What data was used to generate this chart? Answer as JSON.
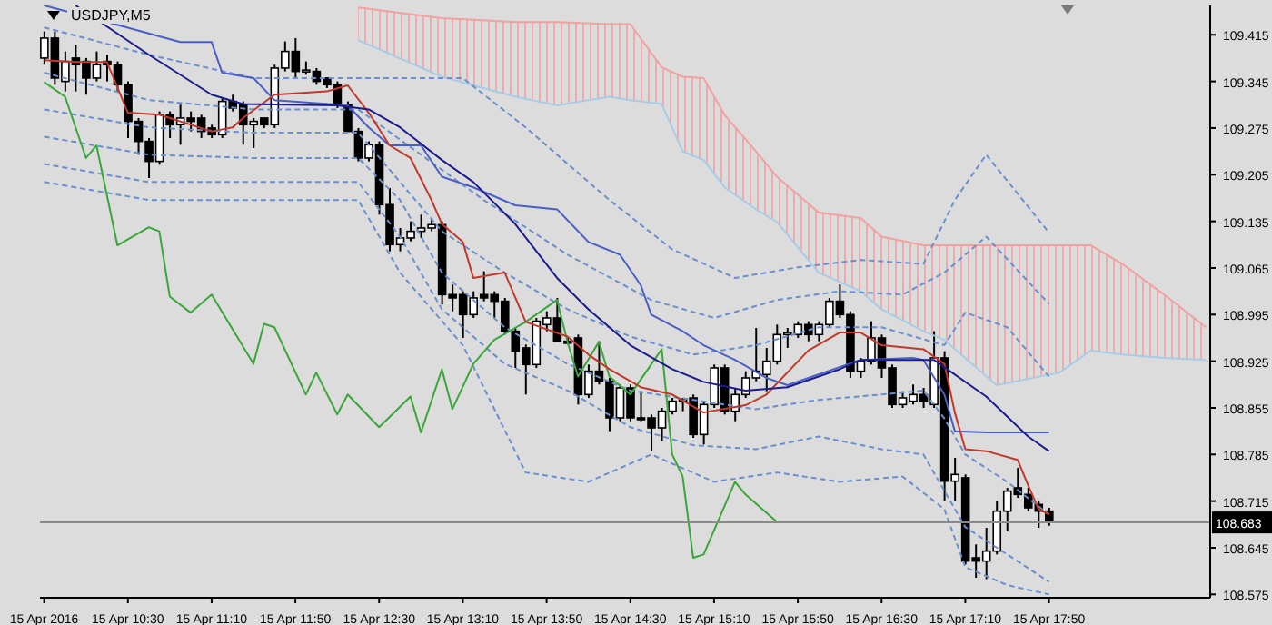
{
  "chart_data": {
    "type": "candlestick",
    "title": "USDJPY,M5",
    "x": [
      "2016-04-15T09:50",
      "2016-04-15T09:55",
      "2016-04-15T10:00",
      "2016-04-15T10:05",
      "2016-04-15T10:10",
      "2016-04-15T10:15",
      "2016-04-15T10:20",
      "2016-04-15T10:25",
      "2016-04-15T10:30",
      "2016-04-15T10:35",
      "2016-04-15T10:40",
      "2016-04-15T10:45",
      "2016-04-15T10:50",
      "2016-04-15T10:55",
      "2016-04-15T11:00",
      "2016-04-15T11:05",
      "2016-04-15T11:10",
      "2016-04-15T11:15",
      "2016-04-15T11:20",
      "2016-04-15T11:25",
      "2016-04-15T11:30",
      "2016-04-15T11:35",
      "2016-04-15T11:40",
      "2016-04-15T11:45",
      "2016-04-15T11:50",
      "2016-04-15T11:55",
      "2016-04-15T12:00",
      "2016-04-15T12:05",
      "2016-04-15T12:10",
      "2016-04-15T12:15",
      "2016-04-15T12:20",
      "2016-04-15T12:25",
      "2016-04-15T12:30",
      "2016-04-15T12:35",
      "2016-04-15T12:40",
      "2016-04-15T12:45",
      "2016-04-15T12:50",
      "2016-04-15T12:55",
      "2016-04-15T13:00",
      "2016-04-15T13:05",
      "2016-04-15T13:10",
      "2016-04-15T13:15",
      "2016-04-15T13:20",
      "2016-04-15T13:25",
      "2016-04-15T13:30",
      "2016-04-15T13:35",
      "2016-04-15T13:40",
      "2016-04-15T13:45",
      "2016-04-15T13:50",
      "2016-04-15T13:55",
      "2016-04-15T14:00",
      "2016-04-15T14:05",
      "2016-04-15T14:10",
      "2016-04-15T14:15",
      "2016-04-15T14:20",
      "2016-04-15T14:25",
      "2016-04-15T14:30",
      "2016-04-15T14:35",
      "2016-04-15T14:40",
      "2016-04-15T14:45",
      "2016-04-15T14:50",
      "2016-04-15T14:55",
      "2016-04-15T15:00",
      "2016-04-15T15:05",
      "2016-04-15T15:10",
      "2016-04-15T15:15",
      "2016-04-15T15:20",
      "2016-04-15T15:25",
      "2016-04-15T15:30",
      "2016-04-15T15:35",
      "2016-04-15T15:40",
      "2016-04-15T15:45",
      "2016-04-15T15:50",
      "2016-04-15T15:55",
      "2016-04-15T16:00",
      "2016-04-15T16:05",
      "2016-04-15T16:10",
      "2016-04-15T16:15",
      "2016-04-15T16:20",
      "2016-04-15T16:25",
      "2016-04-15T16:30",
      "2016-04-15T16:35",
      "2016-04-15T16:40",
      "2016-04-15T16:45",
      "2016-04-15T16:50",
      "2016-04-15T16:55",
      "2016-04-15T17:00",
      "2016-04-15T17:05",
      "2016-04-15T17:10",
      "2016-04-15T17:15",
      "2016-04-15T17:20",
      "2016-04-15T17:25",
      "2016-04-15T17:30",
      "2016-04-15T17:35",
      "2016-04-15T17:40",
      "2016-04-15T17:45",
      "2016-04-15T17:50"
    ],
    "ohlc": [
      [
        109.38,
        109.42,
        109.37,
        109.41
      ],
      [
        109.41,
        109.42,
        109.34,
        109.35
      ],
      [
        109.345,
        109.39,
        109.33,
        109.375
      ],
      [
        109.38,
        109.4,
        109.33,
        109.37
      ],
      [
        109.375,
        109.38,
        109.325,
        109.35
      ],
      [
        109.35,
        109.39,
        109.345,
        109.37
      ],
      [
        109.375,
        109.385,
        109.345,
        109.37
      ],
      [
        109.37,
        109.375,
        109.33,
        109.34
      ],
      [
        109.34,
        109.345,
        109.26,
        109.285
      ],
      [
        109.285,
        109.29,
        109.235,
        109.255
      ],
      [
        109.255,
        109.26,
        109.2,
        109.225
      ],
      [
        109.225,
        109.3,
        109.22,
        109.295
      ],
      [
        109.295,
        109.3,
        109.26,
        109.28
      ],
      [
        109.28,
        109.31,
        109.25,
        109.29
      ],
      [
        109.29,
        109.3,
        109.27,
        109.285
      ],
      [
        109.29,
        109.295,
        109.26,
        109.27
      ],
      [
        109.275,
        109.28,
        109.26,
        109.265
      ],
      [
        109.265,
        109.32,
        109.26,
        109.315
      ],
      [
        109.315,
        109.325,
        109.3,
        109.305
      ],
      [
        109.31,
        109.315,
        109.25,
        109.28
      ],
      [
        109.28,
        109.29,
        109.245,
        109.285
      ],
      [
        109.29,
        109.29,
        109.275,
        109.28
      ],
      [
        109.28,
        109.37,
        109.275,
        109.365
      ],
      [
        109.365,
        109.405,
        109.36,
        109.39
      ],
      [
        109.39,
        109.41,
        109.35,
        109.36
      ],
      [
        109.36,
        109.375,
        109.355,
        109.362
      ],
      [
        109.36,
        109.365,
        109.34,
        109.345
      ],
      [
        109.35,
        109.35,
        109.335,
        109.34
      ],
      [
        109.34,
        109.345,
        109.305,
        109.31
      ],
      [
        109.31,
        109.315,
        109.27,
        109.27
      ],
      [
        109.27,
        109.275,
        109.225,
        109.23
      ],
      [
        109.23,
        109.255,
        109.225,
        109.25
      ],
      [
        109.25,
        109.255,
        109.145,
        109.16
      ],
      [
        109.16,
        109.185,
        109.09,
        109.1
      ],
      [
        109.1,
        109.125,
        109.09,
        109.11
      ],
      [
        109.11,
        109.135,
        109.105,
        109.12
      ],
      [
        109.12,
        109.145,
        109.11,
        109.125
      ],
      [
        109.125,
        109.14,
        109.12,
        109.13
      ],
      [
        109.13,
        109.135,
        109.01,
        109.025
      ],
      [
        109.025,
        109.04,
        109.0,
        109.02
      ],
      [
        109.025,
        109.03,
        108.96,
        108.995
      ],
      [
        108.995,
        109.03,
        108.99,
        109.02
      ],
      [
        109.025,
        109.06,
        109.015,
        109.02
      ],
      [
        109.025,
        109.03,
        108.99,
        109.015
      ],
      [
        109.015,
        109.02,
        108.965,
        108.97
      ],
      [
        108.97,
        108.975,
        108.915,
        108.94
      ],
      [
        108.945,
        108.95,
        108.875,
        108.92
      ],
      [
        108.92,
        108.99,
        108.915,
        108.985
      ],
      [
        108.98,
        109.0,
        108.97,
        108.99
      ],
      [
        108.99,
        109.02,
        108.955,
        108.955
      ],
      [
        108.955,
        108.96,
        108.95,
        108.952
      ],
      [
        108.96,
        108.965,
        108.86,
        108.875
      ],
      [
        108.875,
        108.92,
        108.87,
        108.91
      ],
      [
        108.91,
        108.955,
        108.89,
        108.895
      ],
      [
        108.895,
        108.9,
        108.82,
        108.84
      ],
      [
        108.84,
        108.89,
        108.835,
        108.885
      ],
      [
        108.885,
        108.89,
        108.835,
        108.84
      ],
      [
        108.84,
        108.88,
        108.835,
        108.838
      ],
      [
        108.84,
        108.845,
        108.79,
        108.825
      ],
      [
        108.825,
        108.855,
        108.805,
        108.85
      ],
      [
        108.85,
        108.87,
        108.845,
        108.865
      ],
      [
        108.865,
        108.87,
        108.85,
        108.868
      ],
      [
        108.87,
        108.875,
        108.81,
        108.815
      ],
      [
        108.815,
        108.865,
        108.8,
        108.86
      ],
      [
        108.86,
        108.92,
        108.855,
        108.915
      ],
      [
        108.915,
        108.92,
        108.845,
        108.85
      ],
      [
        108.85,
        108.885,
        108.835,
        108.875
      ],
      [
        108.875,
        108.91,
        108.87,
        108.9
      ],
      [
        108.9,
        108.975,
        108.895,
        108.91
      ],
      [
        108.905,
        108.945,
        108.88,
        108.925
      ],
      [
        108.925,
        108.98,
        108.92,
        108.965
      ],
      [
        108.965,
        108.975,
        108.945,
        108.968
      ],
      [
        108.965,
        108.985,
        108.96,
        108.98
      ],
      [
        108.98,
        108.985,
        108.955,
        108.965
      ],
      [
        108.965,
        108.985,
        108.955,
        108.98
      ],
      [
        108.98,
        109.02,
        108.975,
        109.015
      ],
      [
        109.015,
        109.04,
        108.99,
        108.995
      ],
      [
        108.995,
        109.0,
        108.9,
        108.91
      ],
      [
        108.91,
        108.93,
        108.9,
        108.925
      ],
      [
        108.925,
        108.985,
        108.92,
        108.96
      ],
      [
        108.96,
        108.965,
        108.9,
        108.915
      ],
      [
        108.915,
        108.92,
        108.855,
        108.86
      ],
      [
        108.86,
        108.88,
        108.855,
        108.87
      ],
      [
        108.865,
        108.89,
        108.86,
        108.875
      ],
      [
        108.875,
        108.885,
        108.855,
        108.865
      ],
      [
        108.86,
        108.97,
        108.855,
        108.93
      ],
      [
        108.93,
        108.94,
        108.715,
        108.745
      ],
      [
        108.745,
        108.78,
        108.715,
        108.755
      ],
      [
        108.75,
        108.755,
        108.62,
        108.625
      ],
      [
        108.63,
        108.65,
        108.6,
        108.625
      ],
      [
        108.625,
        108.675,
        108.598,
        108.64
      ],
      [
        108.64,
        108.715,
        108.635,
        108.7
      ],
      [
        108.7,
        108.735,
        108.67,
        108.73
      ],
      [
        108.735,
        108.765,
        108.72,
        108.725
      ],
      [
        108.725,
        108.735,
        108.7,
        108.705
      ],
      [
        108.71,
        108.715,
        108.675,
        108.7
      ],
      [
        108.7,
        108.705,
        108.678,
        108.683
      ]
    ],
    "series": [
      {
        "type": "line",
        "color": "#f2a0a0",
        "x": [
          "2016-04-15T12:20",
          "2016-04-15T13:00",
          "2016-04-15T13:35",
          "2016-04-15T13:55",
          "2016-04-15T14:20",
          "2016-04-15T14:30",
          "2016-04-15T14:45",
          "2016-04-15T14:55",
          "2016-04-15T15:05",
          "2016-04-15T15:15",
          "2016-04-15T15:30",
          "2016-04-15T15:40",
          "2016-04-15T16:00",
          "2016-04-15T16:20",
          "2016-04-15T16:30",
          "2016-04-15T16:50",
          "2016-04-15T17:00",
          "2016-04-15T17:25",
          "2016-04-15T17:55",
          "2016-04-15T18:10",
          "2016-04-15T18:25",
          "2016-04-15T18:45",
          "2016-04-15T19:05"
        ],
        "values": [
          109.456,
          109.44,
          109.434,
          109.434,
          109.431,
          109.431,
          109.366,
          109.352,
          109.35,
          109.295,
          109.24,
          109.202,
          109.148,
          109.14,
          109.112,
          109.099,
          109.099,
          109.099,
          109.099,
          109.099,
          109.071,
          109.025,
          108.976
        ],
        "lower": [
          109.407,
          109.352,
          109.322,
          109.309,
          109.322,
          109.317,
          109.311,
          109.24,
          109.227,
          109.186,
          109.153,
          109.134,
          109.058,
          109.03,
          109.003,
          108.97,
          108.957,
          108.889,
          108.908,
          108.941,
          108.935,
          108.93,
          108.927
        ],
        "upper": [
          109.456,
          109.44,
          109.434,
          109.434,
          109.431,
          109.431,
          109.366,
          109.352,
          109.35,
          109.295,
          109.24,
          109.202,
          109.148,
          109.14,
          109.112,
          109.099,
          109.099,
          109.099,
          109.099,
          109.099,
          109.071,
          109.025,
          108.976
        ]
      },
      {
        "type": "line",
        "color": "#a8cce8",
        "x": [
          "2016-04-15T12:20",
          "2016-04-15T13:00",
          "2016-04-15T13:35",
          "2016-04-15T13:55",
          "2016-04-15T14:20",
          "2016-04-15T14:30",
          "2016-04-15T14:45",
          "2016-04-15T14:55",
          "2016-04-15T15:05",
          "2016-04-15T15:15",
          "2016-04-15T15:30",
          "2016-04-15T15:40",
          "2016-04-15T16:00",
          "2016-04-15T16:20",
          "2016-04-15T16:30",
          "2016-04-15T16:50",
          "2016-04-15T17:00",
          "2016-04-15T17:25",
          "2016-04-15T17:55",
          "2016-04-15T18:10",
          "2016-04-15T18:25",
          "2016-04-15T18:45",
          "2016-04-15T19:05"
        ],
        "values": [
          109.407,
          109.352,
          109.322,
          109.309,
          109.322,
          109.317,
          109.311,
          109.24,
          109.227,
          109.186,
          109.153,
          109.134,
          109.058,
          109.03,
          109.003,
          108.97,
          108.957,
          108.889,
          108.908,
          108.941,
          108.935,
          108.93,
          108.927
        ]
      },
      {
        "type": "line",
        "color": "#6a8fcc",
        "line_style": "dashed",
        "x": [
          "2016-04-15T09:50",
          "2016-04-15T10:40",
          "2016-04-15T11:30",
          "2016-04-15T12:20",
          "2016-04-15T12:40",
          "2016-04-15T13:00",
          "2016-04-15T13:30",
          "2016-04-15T14:00",
          "2016-04-15T14:30",
          "2016-04-15T15:00",
          "2016-04-15T15:30",
          "2016-04-15T16:00",
          "2016-04-15T16:30",
          "2016-04-15T17:00",
          "2016-04-15T17:10",
          "2016-04-15T17:30",
          "2016-04-15T17:50"
        ],
        "values": [
          109.303,
          109.276,
          109.268,
          109.268,
          109.194,
          109.12,
          109.058,
          109.003,
          108.962,
          108.935,
          108.949,
          108.976,
          108.976,
          108.949,
          108.998,
          108.976,
          108.902
        ]
      },
      {
        "type": "line",
        "color": "#6a8fcc",
        "line_style": "dashed",
        "x": [
          "2016-04-15T09:50",
          "2016-04-15T10:40",
          "2016-04-15T11:30",
          "2016-04-15T12:20",
          "2016-04-15T12:50",
          "2016-04-15T13:20",
          "2016-04-15T14:00",
          "2016-04-15T14:40",
          "2016-04-15T15:10",
          "2016-04-15T15:40",
          "2016-04-15T16:10",
          "2016-04-15T16:40",
          "2016-04-15T17:00",
          "2016-04-15T17:20",
          "2016-04-15T17:50"
        ],
        "values": [
          109.358,
          109.317,
          109.303,
          109.303,
          109.235,
          109.167,
          109.085,
          109.017,
          108.99,
          109.017,
          109.03,
          109.025,
          109.058,
          109.112,
          109.011
        ]
      },
      {
        "type": "line",
        "color": "#6a8fcc",
        "line_style": "dashed",
        "x": [
          "2016-04-15T09:50",
          "2016-04-15T10:40",
          "2016-04-15T11:30",
          "2016-04-15T12:20",
          "2016-04-15T13:10",
          "2016-04-15T13:40",
          "2016-04-15T14:20",
          "2016-04-15T14:50",
          "2016-04-15T15:20",
          "2016-04-15T15:50",
          "2016-04-15T16:20",
          "2016-04-15T16:50",
          "2016-04-15T17:05",
          "2016-04-15T17:20",
          "2016-04-15T17:50"
        ],
        "values": [
          109.426,
          109.385,
          109.35,
          109.35,
          109.35,
          109.276,
          109.167,
          109.093,
          109.05,
          109.066,
          109.077,
          109.071,
          109.167,
          109.235,
          109.118
        ]
      },
      {
        "type": "line",
        "color": "#6a8fcc",
        "line_style": "dashed",
        "x": [
          "2016-04-15T09:50",
          "2016-04-15T10:40",
          "2016-04-15T11:30",
          "2016-04-15T12:20",
          "2016-04-15T12:40",
          "2016-04-15T13:00",
          "2016-04-15T13:30",
          "2016-04-15T14:00",
          "2016-04-15T14:30",
          "2016-04-15T15:00",
          "2016-04-15T15:30",
          "2016-04-15T16:00",
          "2016-04-15T16:30",
          "2016-04-15T16:50",
          "2016-04-15T17:00",
          "2016-04-15T17:10",
          "2016-04-15T17:30",
          "2016-04-15T17:50"
        ],
        "values": [
          109.262,
          109.235,
          109.23,
          109.23,
          109.167,
          109.058,
          108.976,
          108.921,
          108.881,
          108.867,
          108.853,
          108.867,
          108.875,
          108.881,
          108.839,
          108.785,
          108.744,
          108.695
        ]
      },
      {
        "type": "line",
        "color": "#6a8fcc",
        "line_style": "dashed",
        "x": [
          "2016-04-15T09:50",
          "2016-04-15T10:40",
          "2016-04-15T11:30",
          "2016-04-15T12:20",
          "2016-04-15T12:40",
          "2016-04-15T13:00",
          "2016-04-15T13:30",
          "2016-04-15T14:00",
          "2016-04-15T14:30",
          "2016-04-15T15:00",
          "2016-04-15T15:30",
          "2016-04-15T16:00",
          "2016-04-15T16:30",
          "2016-04-15T16:50",
          "2016-04-15T17:10",
          "2016-04-15T17:30",
          "2016-04-15T17:50"
        ],
        "values": [
          109.221,
          109.194,
          109.194,
          109.194,
          109.112,
          109.003,
          108.921,
          108.881,
          108.826,
          108.799,
          108.793,
          108.812,
          108.793,
          108.785,
          108.676,
          108.635,
          108.594
        ]
      },
      {
        "type": "line",
        "color": "#6a8fcc",
        "line_style": "dashed",
        "x": [
          "2016-04-15T09:50",
          "2016-04-15T10:40",
          "2016-04-15T11:30",
          "2016-04-15T12:20",
          "2016-04-15T12:40",
          "2016-04-15T13:10",
          "2016-04-15T13:40",
          "2016-04-15T14:10",
          "2016-04-15T14:40",
          "2016-04-15T15:10",
          "2016-04-15T15:40",
          "2016-04-15T16:10",
          "2016-04-15T16:40",
          "2016-04-15T17:00",
          "2016-04-15T17:10",
          "2016-04-15T17:30",
          "2016-04-15T17:50"
        ],
        "values": [
          109.194,
          109.167,
          109.167,
          109.167,
          109.058,
          108.949,
          108.758,
          108.744,
          108.785,
          108.744,
          108.758,
          108.744,
          108.752,
          108.703,
          108.616,
          108.589,
          108.575
        ]
      },
      {
        "type": "line",
        "color": "#3aa63a",
        "x": [
          "2016-04-15T09:50",
          "2016-04-15T10:00",
          "2016-04-15T10:10",
          "2016-04-15T10:15",
          "2016-04-15T10:25",
          "2016-04-15T10:40",
          "2016-04-15T10:45",
          "2016-04-15T10:50",
          "2016-04-15T11:00",
          "2016-04-15T11:10",
          "2016-04-15T11:30",
          "2016-04-15T11:35",
          "2016-04-15T11:40",
          "2016-04-15T11:55",
          "2016-04-15T12:00",
          "2016-04-15T12:10",
          "2016-04-15T12:15",
          "2016-04-15T12:30",
          "2016-04-15T12:45",
          "2016-04-15T12:50",
          "2016-04-15T13:00",
          "2016-04-15T13:05",
          "2016-04-15T13:15",
          "2016-04-15T13:25",
          "2016-04-15T13:40",
          "2016-04-15T13:55",
          "2016-04-15T14:00",
          "2016-04-15T14:05",
          "2016-04-15T14:15",
          "2016-04-15T14:20",
          "2016-04-15T14:30",
          "2016-04-15T14:45",
          "2016-04-15T14:50",
          "2016-04-15T14:55",
          "2016-04-15T15:00",
          "2016-04-15T15:05",
          "2016-04-15T15:20",
          "2016-04-15T15:25",
          "2016-04-15T15:40"
        ],
        "values": [
          109.344,
          109.322,
          109.23,
          109.249,
          109.099,
          109.126,
          109.12,
          109.022,
          108.998,
          109.025,
          108.921,
          108.981,
          108.976,
          108.875,
          108.908,
          108.845,
          108.875,
          108.826,
          108.872,
          108.818,
          108.913,
          108.853,
          108.921,
          108.957,
          108.984,
          109.017,
          108.954,
          108.902,
          108.954,
          108.902,
          108.875,
          108.943,
          108.785,
          108.752,
          108.63,
          108.635,
          108.744,
          108.725,
          108.684
        ]
      },
      {
        "type": "line",
        "color": "#4a5fc4",
        "x": [
          "2016-04-15T09:50",
          "2016-04-15T10:20",
          "2016-04-15T10:55",
          "2016-04-15T11:10",
          "2016-04-15T11:15",
          "2016-04-15T11:30",
          "2016-04-15T11:40",
          "2016-04-15T12:15",
          "2016-04-15T12:25",
          "2016-04-15T12:35",
          "2016-04-15T12:50",
          "2016-04-15T13:00",
          "2016-04-15T13:15",
          "2016-04-15T13:35",
          "2016-04-15T13:55",
          "2016-04-15T14:10",
          "2016-04-15T14:25",
          "2016-04-15T14:35",
          "2016-04-15T14:40",
          "2016-04-15T14:55",
          "2016-04-15T15:05",
          "2016-04-15T15:20",
          "2016-04-15T15:35",
          "2016-04-15T15:45",
          "2016-04-15T16:20",
          "2016-04-15T16:45",
          "2016-04-15T16:50",
          "2016-04-15T17:00",
          "2016-04-15T17:05",
          "2016-04-15T17:20",
          "2016-04-15T17:50"
        ],
        "values": [
          109.459,
          109.434,
          109.404,
          109.404,
          109.358,
          109.35,
          109.317,
          109.309,
          109.276,
          109.249,
          109.249,
          109.202,
          109.186,
          109.159,
          109.153,
          109.104,
          109.085,
          109.039,
          108.995,
          108.97,
          108.949,
          108.927,
          108.9,
          108.889,
          108.927,
          108.93,
          108.927,
          108.875,
          108.82,
          108.818,
          108.818
        ]
      },
      {
        "type": "line",
        "color": "#c0392b",
        "x": [
          "2016-04-15T09:50",
          "2016-04-15T10:05",
          "2016-04-15T10:20",
          "2016-04-15T10:30",
          "2016-04-15T10:45",
          "2016-04-15T11:10",
          "2016-04-15T11:20",
          "2016-04-15T11:25",
          "2016-04-15T11:40",
          "2016-04-15T12:05",
          "2016-04-15T12:15",
          "2016-04-15T12:25",
          "2016-04-15T12:35",
          "2016-04-15T12:45",
          "2016-04-15T12:55",
          "2016-04-15T13:00",
          "2016-04-15T13:10",
          "2016-04-15T13:15",
          "2016-04-15T13:30",
          "2016-04-15T13:40",
          "2016-04-15T14:00",
          "2016-04-15T14:10",
          "2016-04-15T14:20",
          "2016-04-15T14:35",
          "2016-04-15T14:50",
          "2016-04-15T15:05",
          "2016-04-15T15:25",
          "2016-04-15T15:35",
          "2016-04-15T15:55",
          "2016-04-15T16:10",
          "2016-04-15T16:20",
          "2016-04-15T16:30",
          "2016-04-15T16:50",
          "2016-04-15T17:00",
          "2016-04-15T17:05",
          "2016-04-15T17:10",
          "2016-04-15T17:20",
          "2016-04-15T17:35",
          "2016-04-15T17:40",
          "2016-04-15T17:45",
          "2016-04-15T17:50"
        ],
        "values": [
          109.377,
          109.374,
          109.374,
          109.298,
          109.295,
          109.27,
          109.276,
          109.29,
          109.325,
          109.33,
          109.339,
          109.298,
          109.249,
          109.23,
          109.167,
          109.131,
          109.104,
          109.05,
          109.058,
          108.984,
          108.962,
          108.935,
          108.913,
          108.886,
          108.875,
          108.848,
          108.859,
          108.875,
          108.941,
          108.968,
          108.968,
          108.949,
          108.943,
          108.921,
          108.848,
          108.793,
          108.79,
          108.777,
          108.739,
          108.703,
          108.695
        ]
      },
      {
        "type": "line",
        "color": "#1c1c8c",
        "x": [
          "2016-04-15T10:05",
          "2016-04-15T10:40",
          "2016-04-15T11:10",
          "2016-04-15T11:25",
          "2016-04-15T12:10",
          "2016-04-15T12:25",
          "2016-04-15T12:40",
          "2016-04-15T13:00",
          "2016-04-15T13:15",
          "2016-04-15T13:35",
          "2016-04-15T13:55",
          "2016-04-15T14:10",
          "2016-04-15T14:30",
          "2016-04-15T14:50",
          "2016-04-15T15:05",
          "2016-04-15T15:25",
          "2016-04-15T15:45",
          "2016-04-15T16:10",
          "2016-04-15T16:20",
          "2016-04-15T16:40",
          "2016-04-15T16:55",
          "2016-04-15T17:20",
          "2016-04-15T17:40",
          "2016-04-15T17:50"
        ],
        "values": [
          109.459,
          109.385,
          109.325,
          109.311,
          109.309,
          109.303,
          109.276,
          109.227,
          109.194,
          109.131,
          109.05,
          109.003,
          108.949,
          108.913,
          108.894,
          108.881,
          108.886,
          108.913,
          108.927,
          108.927,
          108.927,
          108.872,
          108.812,
          108.79
        ]
      }
    ],
    "xlim": [
      "2016-04-15T09:48",
      "2016-04-15T19:07"
    ],
    "xticks": [
      {
        "value": "2016-04-15T09:50",
        "label": "15 Apr 2016"
      },
      {
        "value": "2016-04-15T10:30",
        "label": "15 Apr 10:30"
      },
      {
        "value": "2016-04-15T11:10",
        "label": "15 Apr 11:10"
      },
      {
        "value": "2016-04-15T11:50",
        "label": "15 Apr 11:50"
      },
      {
        "value": "2016-04-15T12:30",
        "label": "15 Apr 12:30"
      },
      {
        "value": "2016-04-15T13:10",
        "label": "15 Apr 13:10"
      },
      {
        "value": "2016-04-15T13:50",
        "label": "15 Apr 13:50"
      },
      {
        "value": "2016-04-15T14:30",
        "label": "15 Apr 14:30"
      },
      {
        "value": "2016-04-15T15:10",
        "label": "15 Apr 15:10"
      },
      {
        "value": "2016-04-15T15:50",
        "label": "15 Apr 15:50"
      },
      {
        "value": "2016-04-15T16:30",
        "label": "15 Apr 16:30"
      },
      {
        "value": "2016-04-15T17:10",
        "label": "15 Apr 17:10"
      },
      {
        "value": "2016-04-15T17:50",
        "label": "15 Apr 17:50"
      }
    ],
    "ylim": [
      108.57,
      109.459
    ],
    "yticks": [
      109.415,
      109.345,
      109.275,
      109.205,
      109.135,
      109.065,
      108.995,
      108.925,
      108.855,
      108.785,
      108.715,
      108.645,
      108.575
    ],
    "ref_lines": [
      {
        "axis": "y",
        "value": 108.683,
        "label": "108.683",
        "color": "#8a8a8a"
      }
    ]
  }
}
